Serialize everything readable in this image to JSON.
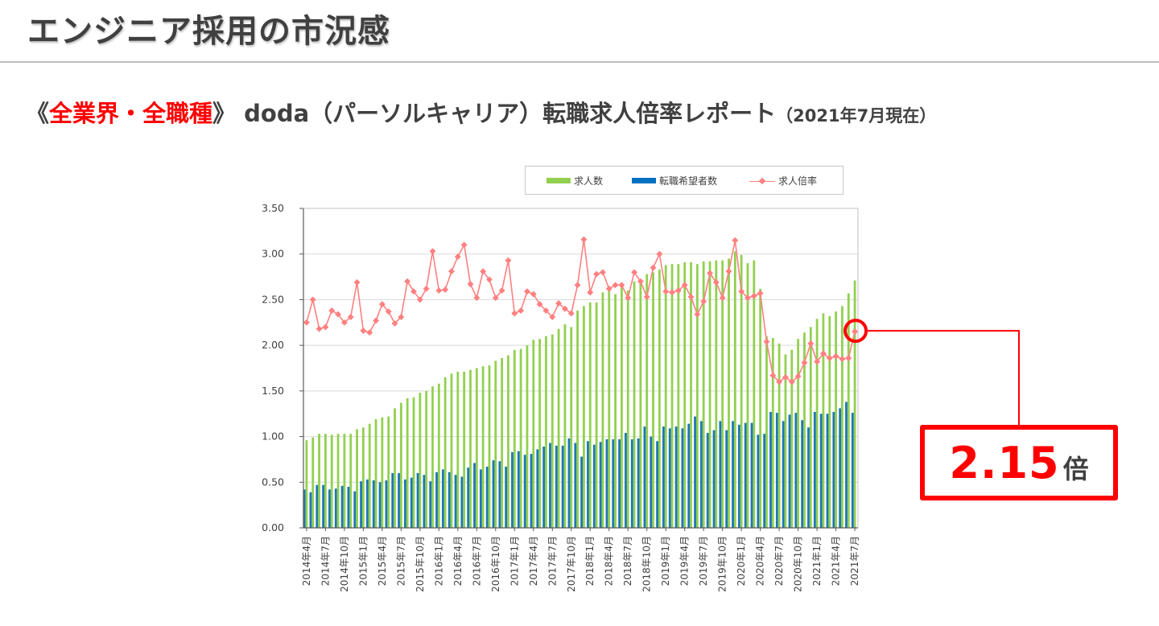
{
  "header": {
    "title": "エンジニア採用の市況感"
  },
  "subtitle": {
    "open_bracket": "《",
    "highlight": "全業界・全職種",
    "close_bracket": "》",
    "main": "doda（パーソルキャリア）転職求人倍率レポート",
    "note": "（2021年7月現在）"
  },
  "callout": {
    "value": "2.15",
    "unit": "倍",
    "target_label": "2021年7月"
  },
  "colors": {
    "job_offers": "#92d050",
    "job_seekers": "#1f77b4",
    "ratio_line": "#ff8080",
    "callout": "#ff0000"
  },
  "chart_data": {
    "type": "bar",
    "title": "",
    "xlabel": "",
    "ylabel": "",
    "ylim": [
      0,
      3.5
    ],
    "yticks": [
      "0.00",
      "0.50",
      "1.00",
      "1.50",
      "2.00",
      "2.50",
      "3.00",
      "3.50"
    ],
    "grid": true,
    "legend_position": "top-center",
    "legend": [
      "求人数",
      "転職希望者数",
      "求人倍率"
    ],
    "x_start": "2014年4月",
    "x_end": "2021年7月",
    "x_tick_labels": [
      "2014年4月",
      "2014年7月",
      "2014年10月",
      "2015年1月",
      "2015年4月",
      "2015年7月",
      "2015年10月",
      "2016年1月",
      "2016年4月",
      "2016年7月",
      "2016年10月",
      "2017年1月",
      "2017年4月",
      "2017年7月",
      "2017年10月",
      "2018年1月",
      "2018年4月",
      "2018年7月",
      "2018年10月",
      "2019年1月",
      "2019年4月",
      "2019年7月",
      "2019年10月",
      "2020年1月",
      "2020年4月",
      "2020年7月",
      "2020年10月",
      "2021年1月",
      "2021年4月",
      "2021年7月"
    ],
    "series": [
      {
        "name": "求人数",
        "kind": "bar",
        "values": [
          0.96,
          0.99,
          1.03,
          1.03,
          1.02,
          1.03,
          1.03,
          1.03,
          1.08,
          1.1,
          1.14,
          1.19,
          1.21,
          1.22,
          1.31,
          1.37,
          1.42,
          1.43,
          1.48,
          1.5,
          1.55,
          1.58,
          1.65,
          1.69,
          1.71,
          1.71,
          1.73,
          1.75,
          1.77,
          1.78,
          1.83,
          1.86,
          1.89,
          1.95,
          1.96,
          2.0,
          2.06,
          2.07,
          2.1,
          2.12,
          2.18,
          2.23,
          2.2,
          2.38,
          2.43,
          2.47,
          2.47,
          2.58,
          2.62,
          2.56,
          2.67,
          2.6,
          2.7,
          2.7,
          2.78,
          2.8,
          2.83,
          2.88,
          2.89,
          2.89,
          2.91,
          2.91,
          2.89,
          2.92,
          2.92,
          2.93,
          2.93,
          2.95,
          3.03,
          2.99,
          2.9,
          2.93,
          2.62,
          2.1,
          2.08,
          2.02,
          1.9,
          1.95,
          2.07,
          2.14,
          2.2,
          2.29,
          2.35,
          2.32,
          2.37,
          2.43,
          2.57,
          2.71
        ]
      },
      {
        "name": "転職希望者数",
        "kind": "bar",
        "values": [
          0.42,
          0.39,
          0.47,
          0.47,
          0.42,
          0.43,
          0.46,
          0.45,
          0.4,
          0.51,
          0.53,
          0.52,
          0.5,
          0.52,
          0.6,
          0.6,
          0.53,
          0.55,
          0.6,
          0.58,
          0.51,
          0.61,
          0.64,
          0.61,
          0.58,
          0.56,
          0.66,
          0.71,
          0.64,
          0.67,
          0.74,
          0.73,
          0.67,
          0.83,
          0.84,
          0.8,
          0.81,
          0.86,
          0.89,
          0.93,
          0.9,
          0.9,
          0.98,
          0.93,
          0.78,
          0.95,
          0.91,
          0.94,
          0.97,
          0.97,
          0.97,
          1.04,
          0.97,
          0.98,
          1.11,
          1.0,
          0.95,
          1.11,
          1.09,
          1.11,
          1.09,
          1.14,
          1.22,
          1.17,
          1.04,
          1.07,
          1.17,
          1.07,
          1.17,
          1.13,
          1.15,
          1.15,
          1.02,
          1.03,
          1.27,
          1.26,
          1.17,
          1.24,
          1.26,
          1.18,
          1.1,
          1.27,
          1.25,
          1.25,
          1.27,
          1.31,
          1.38,
          1.26
        ]
      },
      {
        "name": "求人倍率",
        "kind": "line",
        "values": [
          2.25,
          2.5,
          2.18,
          2.2,
          2.38,
          2.34,
          2.25,
          2.31,
          2.69,
          2.16,
          2.14,
          2.27,
          2.45,
          2.37,
          2.24,
          2.31,
          2.7,
          2.59,
          2.5,
          2.62,
          3.03,
          2.6,
          2.61,
          2.81,
          2.97,
          3.1,
          2.67,
          2.52,
          2.81,
          2.72,
          2.52,
          2.6,
          2.93,
          2.35,
          2.38,
          2.59,
          2.56,
          2.45,
          2.38,
          2.31,
          2.46,
          2.4,
          2.35,
          2.66,
          3.16,
          2.58,
          2.78,
          2.8,
          2.62,
          2.66,
          2.66,
          2.52,
          2.8,
          2.7,
          2.53,
          2.85,
          3.0,
          2.59,
          2.58,
          2.6,
          2.66,
          2.53,
          2.34,
          2.48,
          2.79,
          2.69,
          2.52,
          2.81,
          3.15,
          2.59,
          2.52,
          2.54,
          2.57,
          2.04,
          1.67,
          1.6,
          1.65,
          1.6,
          1.66,
          1.81,
          2.02,
          1.82,
          1.91,
          1.86,
          1.88,
          1.85,
          1.86,
          2.15
        ]
      }
    ]
  }
}
